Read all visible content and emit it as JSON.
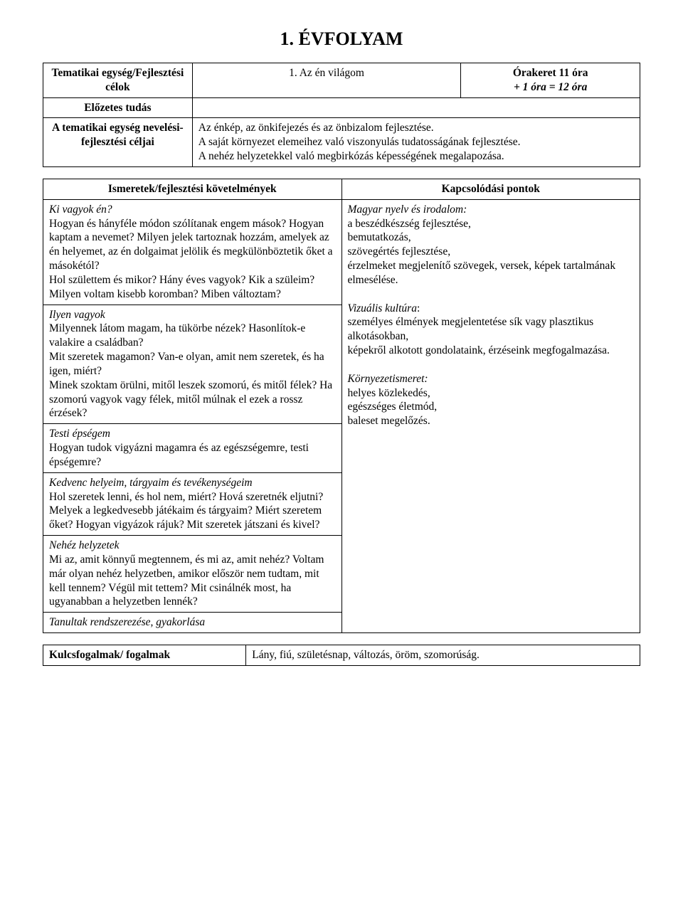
{
  "title": "1. ÉVFOLYAM",
  "header_table": {
    "left1": "Tematikai egység/Fejlesztési célok",
    "mid1": "1. Az én világom",
    "right1_line1": "Órakeret 11 óra",
    "right1_line2": "+ 1 óra = 12 óra",
    "left2": "Előzetes tudás",
    "left3": "A tematikai egység nevelési-fejlesztési céljai",
    "mid3_line1": "Az énkép, az önkifejezés és az önbizalom fejlesztése.",
    "mid3_line2": "A saját környezet elemeihez való viszonyulás tudatosságának fejlesztése.",
    "mid3_line3": "A nehéz helyzetekkel való megbirkózás képességének megalapozása."
  },
  "main_table": {
    "hdr_left": "Ismeretek/fejlesztési követelmények",
    "hdr_right": "Kapcsolódási pontok",
    "left": {
      "s1_title": "Ki vagyok én?",
      "s1_body": "Hogyan és hányféle módon szólítanak engem mások? Hogyan kaptam a nevemet? Milyen jelek tartoznak hozzám, amelyek az én helyemet, az én dolgaimat jelölik és megkülönböztetik őket a másokétól?\nHol születtem és mikor? Hány éves vagyok? Kik a szüleim? Milyen voltam kisebb koromban? Miben változtam?",
      "s2_title": "Ilyen vagyok",
      "s2_body": "Milyennek látom magam, ha tükörbe nézek? Hasonlítok-e valakire a családban?\nMit szeretek magamon? Van-e olyan, amit nem szeretek, és ha igen, miért?\nMinek szoktam örülni, mitől leszek szomorú, és mitől félek? Ha szomorú vagyok vagy félek, mitől múlnak el ezek a rossz érzések?",
      "s3_title": "Testi épségem",
      "s3_body": "Hogyan tudok vigyázni magamra és az egészségemre, testi épségemre?",
      "s4_title": "Kedvenc helyeim, tárgyaim és tevékenységeim",
      "s4_body": "Hol szeretek lenni, és hol nem, miért? Hová szeretnék eljutni? Melyek a legkedvesebb játékaim és tárgyaim? Miért szeretem őket? Hogyan vigyázok rájuk? Mit szeretek játszani és kivel?",
      "s5_title": "Nehéz helyzetek",
      "s5_body": "Mi az, amit könnyű megtennem, és mi az, amit nehéz? Voltam már olyan nehéz helyzetben, amikor először nem tudtam, mit kell tennem? Végül mit tettem? Mit csinálnék most, ha ugyanabban a helyzetben lennék?",
      "s6_title": "Tanultak rendszerezése, gyakorlása"
    },
    "right": {
      "p1_title": "Magyar nyelv és irodalom:",
      "p1_body": "a beszédkészség fejlesztése,\nbemutatkozás,\nszövegértés fejlesztése,\nérzelmeket megjelenítő szövegek, versek, képek tartalmának elmesélése.",
      "p2_title": "Vizuális kultúra",
      "p2_body": ":\nszemélyes élmények megjelentetése sík vagy plasztikus alkotásokban,\nképekről alkotott gondolataink, érzéseink megfogalmazása.",
      "p3_title": "Környezetismeret:",
      "p3_body": "helyes közlekedés,\negészséges életmód,\nbaleset megelőzés."
    }
  },
  "footer_table": {
    "left": "Kulcsfogalmak/ fogalmak",
    "right": "Lány, fiú, születésnap, változás, öröm, szomorúság."
  }
}
